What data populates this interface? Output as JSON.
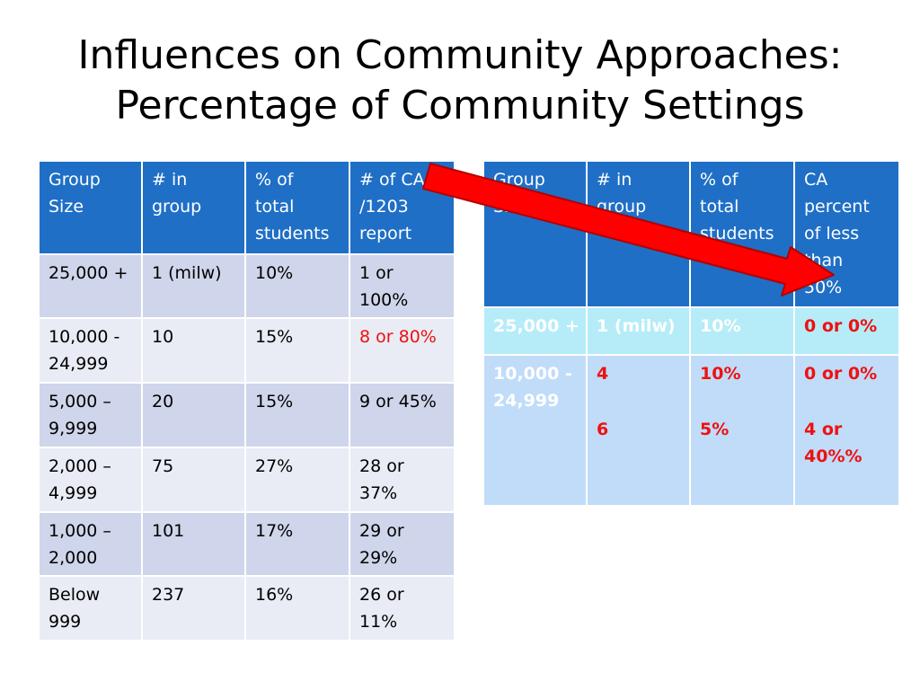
{
  "title_lines": [
    "Influences on Community Approaches:",
    "Percentage of Community Settings"
  ],
  "left_table": {
    "headers": [
      [
        "Group",
        "Size"
      ],
      [
        "# in",
        "group"
      ],
      [
        "% of",
        "total",
        "students"
      ],
      [
        "# of CA’",
        "/1203",
        "report"
      ]
    ],
    "rows": [
      [
        [
          "25,000 +"
        ],
        [
          "1 (milw)"
        ],
        [
          "10%"
        ],
        [
          "1 or",
          "100%"
        ]
      ],
      [
        [
          "10,000 -",
          "24,999"
        ],
        [
          "10"
        ],
        [
          "15%"
        ],
        [
          "8 or 80%"
        ]
      ],
      [
        [
          "5,000 –",
          "9,999"
        ],
        [
          "20"
        ],
        [
          "15%"
        ],
        [
          "9 or 45%"
        ]
      ],
      [
        [
          "2,000 –",
          "4,999"
        ],
        [
          "75"
        ],
        [
          "27%"
        ],
        [
          "28 or",
          "37%"
        ]
      ],
      [
        [
          "1,000 –",
          "2,000"
        ],
        [
          "101"
        ],
        [
          "17%"
        ],
        [
          "29 or",
          "29%"
        ]
      ],
      [
        [
          "Below",
          "999"
        ],
        [
          "237"
        ],
        [
          "16%"
        ],
        [
          "26 or",
          "11%"
        ]
      ]
    ]
  },
  "right_table": {
    "headers": [
      [
        "Group",
        "Size"
      ],
      [
        "# in",
        "group"
      ],
      [
        "% of",
        "total",
        "students"
      ],
      [
        "CA",
        "percent",
        "of less",
        "than",
        "50%"
      ]
    ],
    "row1": [
      [
        "25,000 +"
      ],
      [
        "1 (milw)"
      ],
      [
        "10%"
      ],
      [
        "0 or 0%"
      ]
    ],
    "row2": {
      "group": [
        "10,000 -",
        "24,999"
      ],
      "counts": [
        "4",
        "6"
      ],
      "percents": [
        "10%",
        "5%"
      ],
      "ca": [
        [
          "0 or 0%"
        ],
        [
          "4 or",
          "40%%"
        ]
      ]
    }
  },
  "colors": {
    "header_blue": "#1f6fc6",
    "left_band_dark": "#cfd5ea",
    "left_band_light": "#e9ecf4",
    "right_row_cyan": "#b5ecf8",
    "right_row_blue": "#c0dcf8",
    "highlight_red": "#ee1111",
    "arrow_red": "#ff0000"
  }
}
